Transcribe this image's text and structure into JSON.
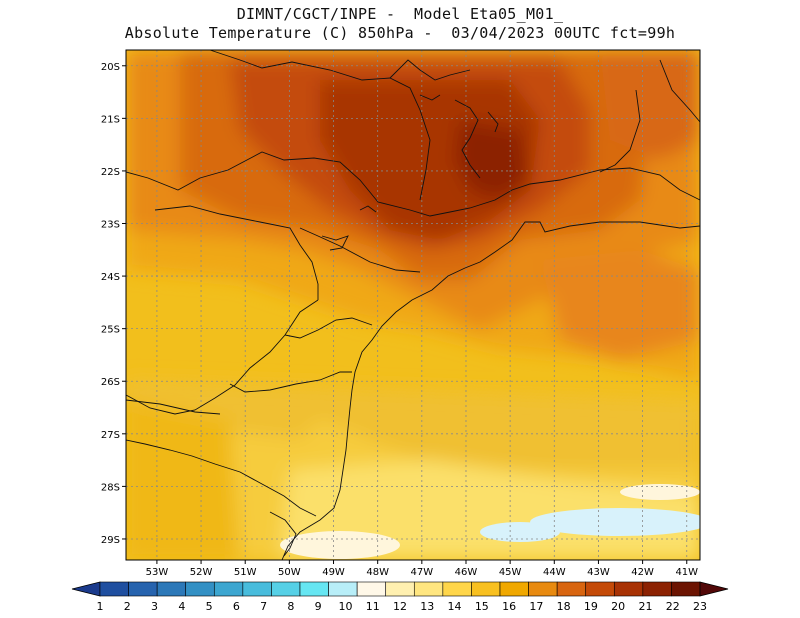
{
  "header": {
    "line1": "DIMNT/CGCT/INPE -  Model Eta05_M01_",
    "line2": "Absolute Temperature (C) 850hPa -  03/04/2023 00UTC fct=99h"
  },
  "map": {
    "lat_labels": [
      "20S",
      "21S",
      "22S",
      "23S",
      "24S",
      "25S",
      "26S",
      "27S",
      "28S",
      "29S"
    ],
    "lon_labels": [
      "53W",
      "52W",
      "51W",
      "50W",
      "49W",
      "48W",
      "47W",
      "46W",
      "45W",
      "44W",
      "43W",
      "42W",
      "41W"
    ],
    "lat_range": [
      -29.4,
      -19.7
    ],
    "lon_range": [
      -53.7,
      -40.7
    ]
  },
  "colorbar": {
    "labels": [
      "1",
      "2",
      "3",
      "4",
      "5",
      "6",
      "7",
      "8",
      "9",
      "10",
      "11",
      "12",
      "13",
      "14",
      "15",
      "16",
      "17",
      "18",
      "19",
      "20",
      "21",
      "22",
      "23"
    ],
    "colors": [
      "#1a3a8c",
      "#1f4fa0",
      "#2663ae",
      "#2c78b8",
      "#3390c4",
      "#3ca6d0",
      "#48bcdc",
      "#56d0e6",
      "#66e6f2",
      "#b8eef8",
      "#fff8e8",
      "#fff0b0",
      "#ffe680",
      "#ffd64a",
      "#f8c020",
      "#f0a800",
      "#e88a10",
      "#d86510",
      "#c44a08",
      "#a83204",
      "#8c2202",
      "#6c1402",
      "#520808"
    ]
  }
}
